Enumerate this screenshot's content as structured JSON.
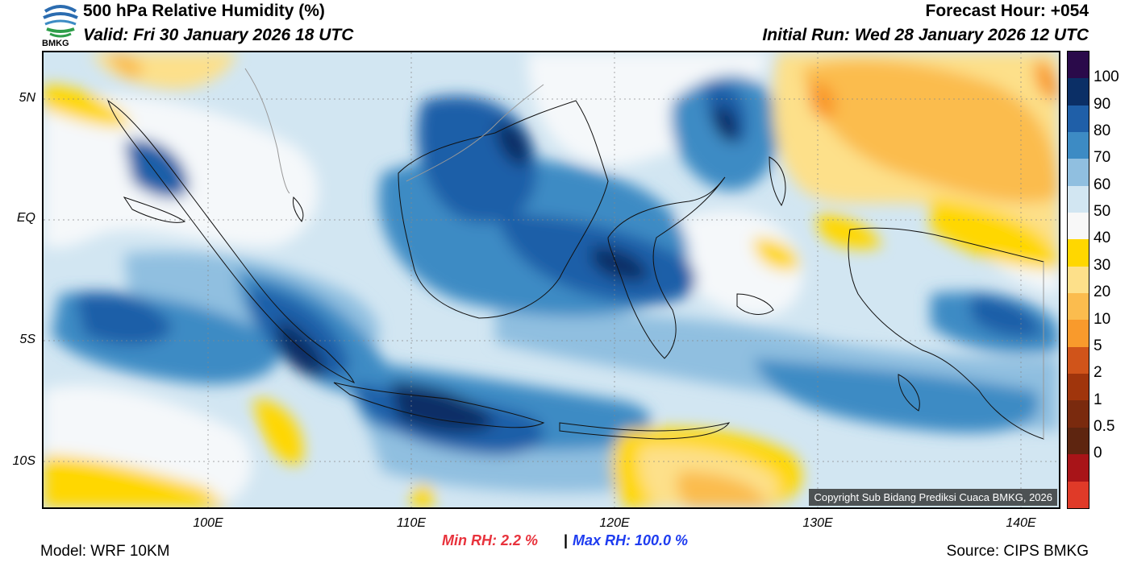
{
  "header": {
    "title": "500 hPa Relative Humidity (%)",
    "valid": "Valid: Fri 30 January 2026 18 UTC",
    "forecast_hour": "Forecast Hour: +054",
    "initial_run": "Initial Run: Wed 28 January 2026 12 UTC"
  },
  "logo": {
    "text": "BMKG",
    "icon": "bmkg-logo-icon"
  },
  "map": {
    "lat_labels": [
      "5N",
      "EQ",
      "5S",
      "10S"
    ],
    "lon_labels": [
      "100E",
      "110E",
      "120E",
      "130E",
      "140E"
    ],
    "copyright": "Copyright Sub Bidang Prediksi Cuaca BMKG, 2026"
  },
  "colorbar": {
    "labels": [
      "100",
      "90",
      "80",
      "70",
      "60",
      "50",
      "40",
      "30",
      "20",
      "10",
      "5",
      "2",
      "1",
      "0.5",
      "0"
    ],
    "colors": [
      "#2a0a4a",
      "#0b2f66",
      "#1f5fa8",
      "#3d8bc4",
      "#90bfe0",
      "#d2e6f2",
      "#f8f8f8",
      "#ffd700",
      "#fde08a",
      "#fbbc4e",
      "#f99a2c",
      "#d0541a",
      "#a0350c",
      "#7a2a0e",
      "#5e2510",
      "#a81418",
      "#e03a28"
    ]
  },
  "stats": {
    "min_rh": "Min RH:   2.2 %",
    "separator": "|",
    "max_rh": "Max RH: 100.0 %"
  },
  "footer": {
    "model": "Model: WRF 10KM",
    "source": "Source: CIPS BMKG"
  }
}
